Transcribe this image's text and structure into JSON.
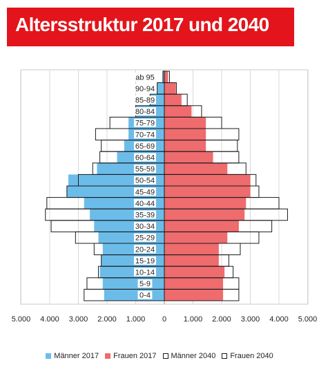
{
  "banner": {
    "title": "Altersstruktur 2017 und 2040"
  },
  "chart_data": {
    "type": "bar",
    "orientation": "horizontal",
    "subtype": "population-pyramid",
    "categories": [
      "ab 95",
      "90-94",
      "85-89",
      "80-84",
      "75-79",
      "70-74",
      "65-69",
      "60-64",
      "55-59",
      "50-54",
      "45-49",
      "40-44",
      "35-39",
      "30-34",
      "25-29",
      "20-24",
      "15-19",
      "10-14",
      "5-9",
      "0-4"
    ],
    "series": [
      {
        "name": "Männer 2017",
        "side": "left",
        "color": "#6cbcea",
        "values": [
          50,
          250,
          500,
          1000,
          1250,
          1250,
          1400,
          1650,
          2350,
          3350,
          3400,
          2800,
          2600,
          2450,
          2300,
          2150,
          2200,
          2250,
          2150,
          2100
        ]
      },
      {
        "name": "Frauen 2017",
        "side": "right",
        "color": "#ee6b6e",
        "values": [
          130,
          400,
          600,
          950,
          1450,
          1450,
          1450,
          1700,
          2200,
          3000,
          3000,
          2850,
          2800,
          2600,
          2200,
          1900,
          1900,
          2100,
          2050,
          2050
        ]
      },
      {
        "name": "Männer 2040",
        "side": "left",
        "color": "#ffffff",
        "values": [
          50,
          250,
          500,
          1000,
          1900,
          2400,
          2200,
          2250,
          2500,
          3000,
          3400,
          4100,
          4150,
          3950,
          3100,
          2450,
          2200,
          2300,
          2700,
          2800
        ]
      },
      {
        "name": "Frauen 2040",
        "side": "right",
        "color": "#ffffff",
        "values": [
          180,
          420,
          800,
          1300,
          2000,
          2600,
          2550,
          2600,
          2850,
          3200,
          3300,
          4000,
          4300,
          3750,
          3300,
          2650,
          2250,
          2400,
          2600,
          2600
        ]
      }
    ],
    "xticks": [
      "5.000",
      "4.000",
      "3.000",
      "2.000",
      "1.000",
      "0",
      "1.000",
      "2.000",
      "3.000",
      "4.000",
      "5.000"
    ],
    "xlim": [
      -5000,
      5000
    ],
    "grid": true,
    "legend_position": "bottom"
  }
}
